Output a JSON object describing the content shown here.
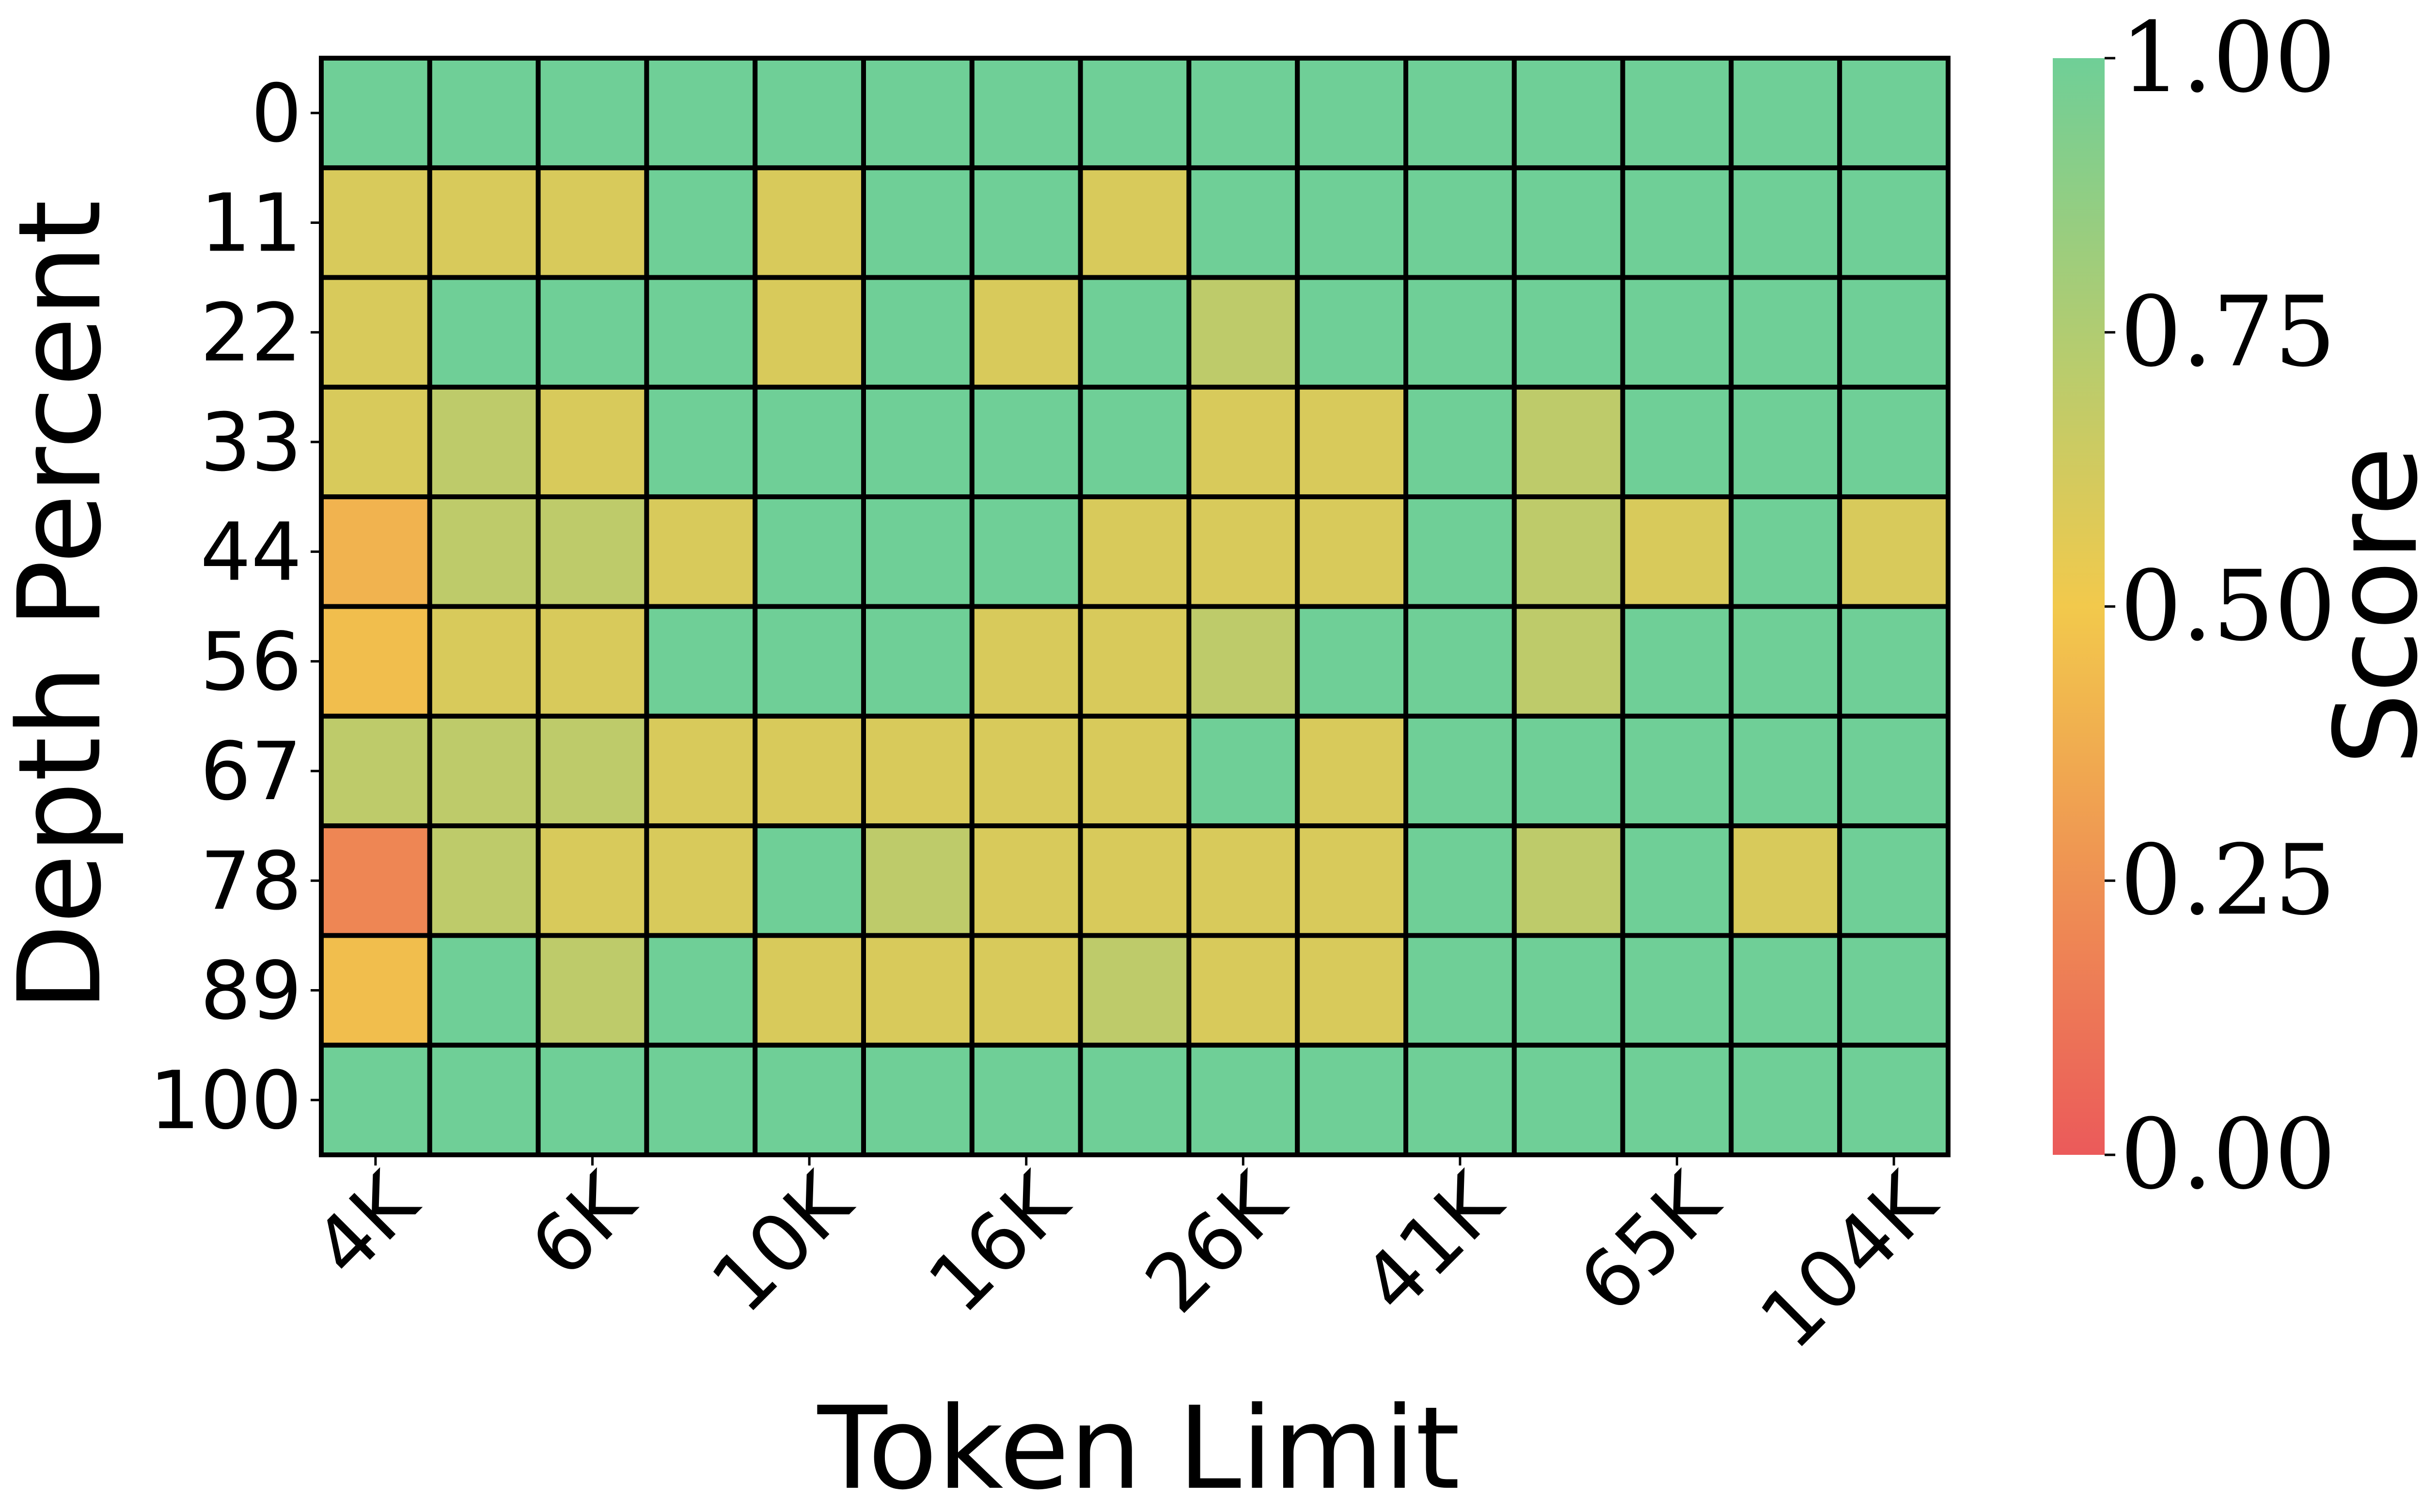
{
  "chart_data": {
    "type": "heatmap",
    "title": "",
    "xlabel": "Token Limit",
    "ylabel": "Depth Percent",
    "colorbar_label": "Score",
    "colorbar_ticks": [
      "0.00",
      "0.25",
      "0.50",
      "0.75",
      "1.00"
    ],
    "colorbar_range": [
      0,
      1
    ],
    "colormap": [
      {
        "value": 0.0,
        "color": "#eb5a5a"
      },
      {
        "value": 0.5,
        "color": "#f2c94c"
      },
      {
        "value": 1.0,
        "color": "#6fcf97"
      }
    ],
    "cell_border_color": "#000000",
    "y_categories": [
      "0",
      "11",
      "22",
      "33",
      "44",
      "56",
      "67",
      "78",
      "89",
      "100"
    ],
    "x_tick_labels": [
      "4K",
      "6K",
      "10K",
      "16K",
      "26K",
      "41K",
      "65K",
      "104K"
    ],
    "x_tick_columns": [
      0,
      2,
      4,
      6,
      8,
      10,
      12,
      14
    ],
    "n_columns": 15,
    "values": [
      [
        1,
        1,
        1,
        1,
        1,
        1,
        1,
        1,
        1,
        1,
        1,
        1,
        1,
        1,
        1
      ],
      [
        0.6,
        0.6,
        0.6,
        1,
        0.6,
        1,
        1,
        0.6,
        1,
        1,
        1,
        1,
        1,
        1,
        1
      ],
      [
        0.6,
        1,
        1,
        1,
        0.6,
        1,
        0.6,
        1,
        0.7,
        1,
        1,
        1,
        1,
        1,
        1
      ],
      [
        0.6,
        0.7,
        0.6,
        1,
        1,
        1,
        1,
        1,
        0.6,
        0.6,
        1,
        0.7,
        1,
        1,
        1
      ],
      [
        0.4,
        0.7,
        0.7,
        0.6,
        1,
        1,
        1,
        0.6,
        0.6,
        0.6,
        1,
        0.7,
        0.6,
        1,
        0.6
      ],
      [
        0.45,
        0.6,
        0.6,
        1,
        1,
        1,
        0.6,
        0.6,
        0.7,
        1,
        1,
        0.7,
        1,
        1,
        1
      ],
      [
        0.7,
        0.7,
        0.7,
        0.6,
        0.6,
        0.6,
        0.6,
        0.6,
        1,
        0.6,
        1,
        1,
        1,
        1,
        1
      ],
      [
        0.2,
        0.7,
        0.6,
        0.6,
        1,
        0.7,
        0.6,
        0.6,
        0.6,
        0.6,
        1,
        0.7,
        1,
        0.6,
        1
      ],
      [
        0.45,
        1,
        0.7,
        1,
        0.6,
        0.6,
        0.6,
        0.7,
        0.6,
        0.6,
        1,
        1,
        1,
        1,
        1
      ],
      [
        1,
        1,
        1,
        1,
        1,
        1,
        1,
        1,
        1,
        1,
        1,
        1,
        1,
        1,
        1
      ]
    ]
  }
}
